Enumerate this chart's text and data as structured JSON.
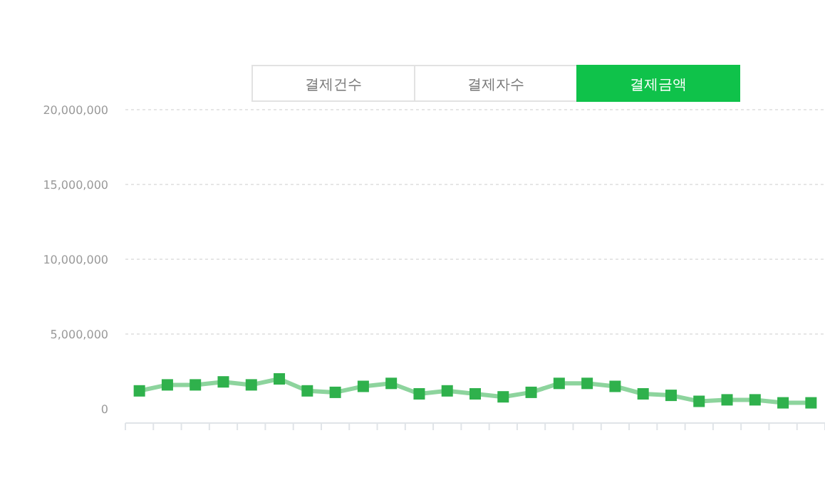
{
  "chart_data": {
    "type": "line",
    "title": "결제금액",
    "annotations": [
      "결제건수",
      "결제자수"
    ],
    "categories": [
      null,
      null,
      null,
      null,
      null,
      null,
      null,
      null,
      null,
      null,
      null,
      null,
      null,
      null,
      null,
      null,
      null,
      null,
      null,
      null,
      null,
      null,
      null,
      null,
      null
    ],
    "series": [
      {
        "color": "#2fb14c",
        "values": [
          1200000,
          1600000,
          1600000,
          1800000,
          1600000,
          2000000,
          1200000,
          1100000,
          1500000,
          1700000,
          1000000,
          1200000,
          1000000,
          800000,
          1100000,
          1700000,
          1700000,
          1500000,
          1000000,
          900000,
          500000,
          600000,
          600000,
          400000,
          400000
        ]
      }
    ],
    "ylim": [
      0,
      20000000
    ],
    "yticks": [
      {
        "value": 0,
        "label": "0"
      },
      {
        "value": 5000000,
        "label": "5,000,000"
      },
      {
        "value": 10000000,
        "label": "10,000,000"
      },
      {
        "value": 15000000,
        "label": "15,000,000"
      },
      {
        "value": 20000000,
        "label": "20,000,000"
      }
    ],
    "grid": "y",
    "marker": "square",
    "line_style": "solid",
    "tick_labels": "y"
  }
}
